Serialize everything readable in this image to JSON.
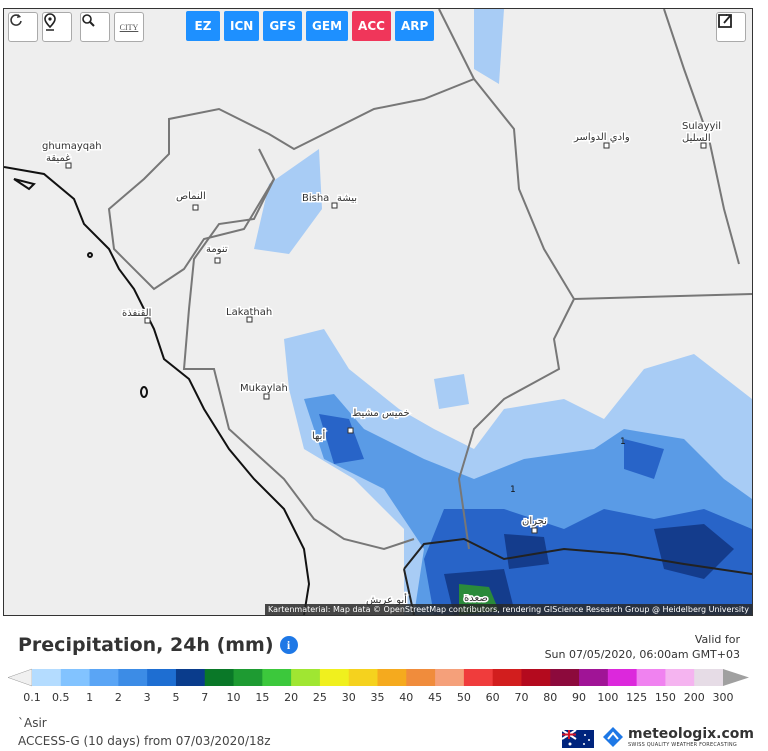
{
  "toolbar": {
    "city_button": "CITY",
    "models": [
      {
        "label": "EZ",
        "active": false
      },
      {
        "label": "ICN",
        "active": false
      },
      {
        "label": "GFS",
        "active": false
      },
      {
        "label": "GEM",
        "active": false
      },
      {
        "label": "ACC",
        "active": true
      },
      {
        "label": "ARP",
        "active": false
      }
    ]
  },
  "map": {
    "labels": [
      "ghumayqah",
      "غميقة",
      "النماص",
      "Bisha",
      "بيشة",
      "تنومة",
      "القنفذة",
      "Lakathah",
      "Mukaylah",
      "خميس مشيط",
      "أبها",
      "وادي الدواسر",
      "Sulayyil",
      "السليل",
      "نجران",
      "صعدة",
      "أبو عريش"
    ],
    "contour_labels": [
      1,
      1
    ],
    "attribution": "Kartenmaterial: Map data © OpenStreetMap contributors, rendering GIScience Research Group @ Heidelberg University"
  },
  "legend": {
    "title": "Precipitation, 24h (mm)",
    "info": "i",
    "valid_label": "Valid for",
    "valid_time": "Sun 07/05/2020, 06:00am GMT+03",
    "scale": [
      0.1,
      0.5,
      1,
      2,
      3,
      5,
      7,
      10,
      15,
      20,
      25,
      30,
      35,
      40,
      45,
      50,
      60,
      70,
      80,
      90,
      100,
      125,
      150,
      200,
      300
    ],
    "colors": [
      "#f0f0f0",
      "#b4dcff",
      "#82c3ff",
      "#5aa5f5",
      "#3c8ce6",
      "#1e6ed2",
      "#0a3c8c",
      "#0a7828",
      "#1e9b32",
      "#3cc83c",
      "#a0e632",
      "#f0f01e",
      "#f5d21e",
      "#f5aa1e",
      "#f08c3c",
      "#f5a07a",
      "#f03c3c",
      "#d21e1e",
      "#b40a1e",
      "#8c0a3c",
      "#a01496",
      "#dc28dc",
      "#f082f0",
      "#f5b4f0",
      "#e6dce6",
      "#a0a0a0"
    ]
  },
  "footer": {
    "region": "`Asir",
    "model_run": "ACCESS-G (10 days) from 07/03/2020/18z",
    "brand": "meteologix.com",
    "tagline": "SWISS QUALITY WEATHER FORECASTING"
  }
}
